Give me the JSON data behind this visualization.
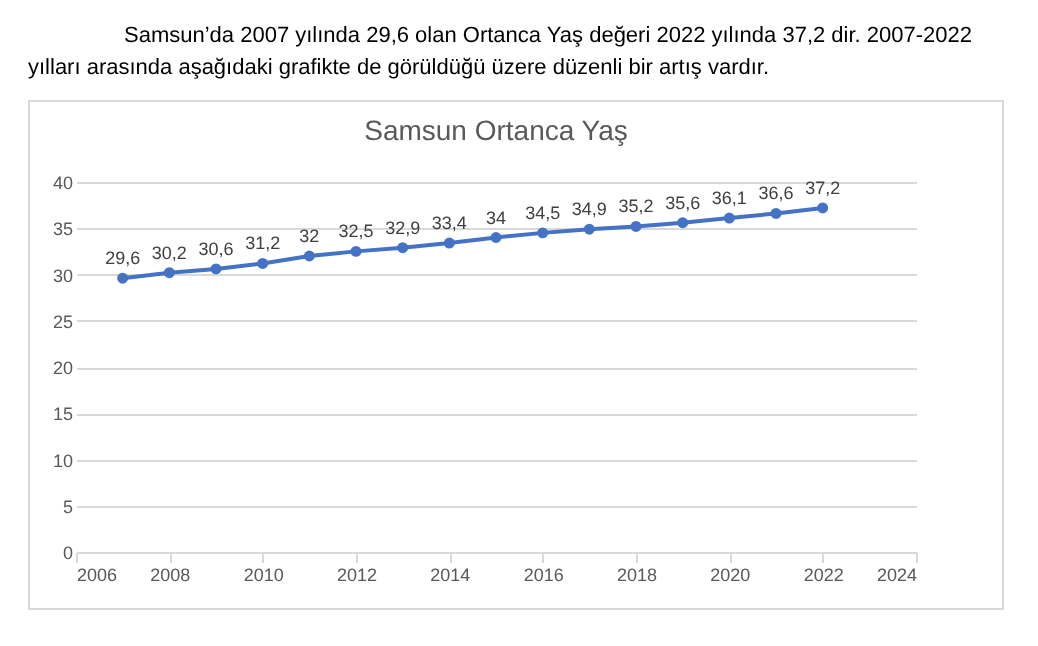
{
  "chart_data": {
    "type": "line",
    "title": "Samsun Ortanca Yaş",
    "annotations": [
      "Samsun’da 2007 yılında 29,6 olan Ortanca Yaş değeri 2022 yılında 37,2 dir. 2007-2022 yılları arasında aşağıdaki grafikte de görüldüğü üzere düzenli bir artış vardır."
    ],
    "x": [
      2007,
      2008,
      2009,
      2010,
      2011,
      2012,
      2013,
      2014,
      2015,
      2016,
      2017,
      2018,
      2019,
      2020,
      2021,
      2022
    ],
    "series": [
      {
        "color": "#4472c4",
        "values": [
          29.6,
          30.2,
          30.6,
          31.2,
          32,
          32.5,
          32.9,
          33.4,
          34,
          34.5,
          34.9,
          35.2,
          35.6,
          36.1,
          36.6,
          37.2
        ],
        "value_labels": [
          "29,6",
          "30,2",
          "30,6",
          "31,2",
          "32",
          "32,5",
          "32,9",
          "33,4",
          "34",
          "34,5",
          "34,9",
          "35,2",
          "35,6",
          "36,1",
          "36,6",
          "37,2"
        ]
      }
    ],
    "xlim": [
      2006,
      2024
    ],
    "xticks": [
      2006,
      2008,
      2010,
      2012,
      2014,
      2016,
      2018,
      2020,
      2022,
      2024
    ],
    "ylim": [
      0,
      40
    ],
    "yticks": [
      0,
      5,
      10,
      15,
      20,
      25,
      30,
      35,
      40
    ],
    "grid": "y",
    "marker": "circle",
    "line_style": "solid"
  }
}
